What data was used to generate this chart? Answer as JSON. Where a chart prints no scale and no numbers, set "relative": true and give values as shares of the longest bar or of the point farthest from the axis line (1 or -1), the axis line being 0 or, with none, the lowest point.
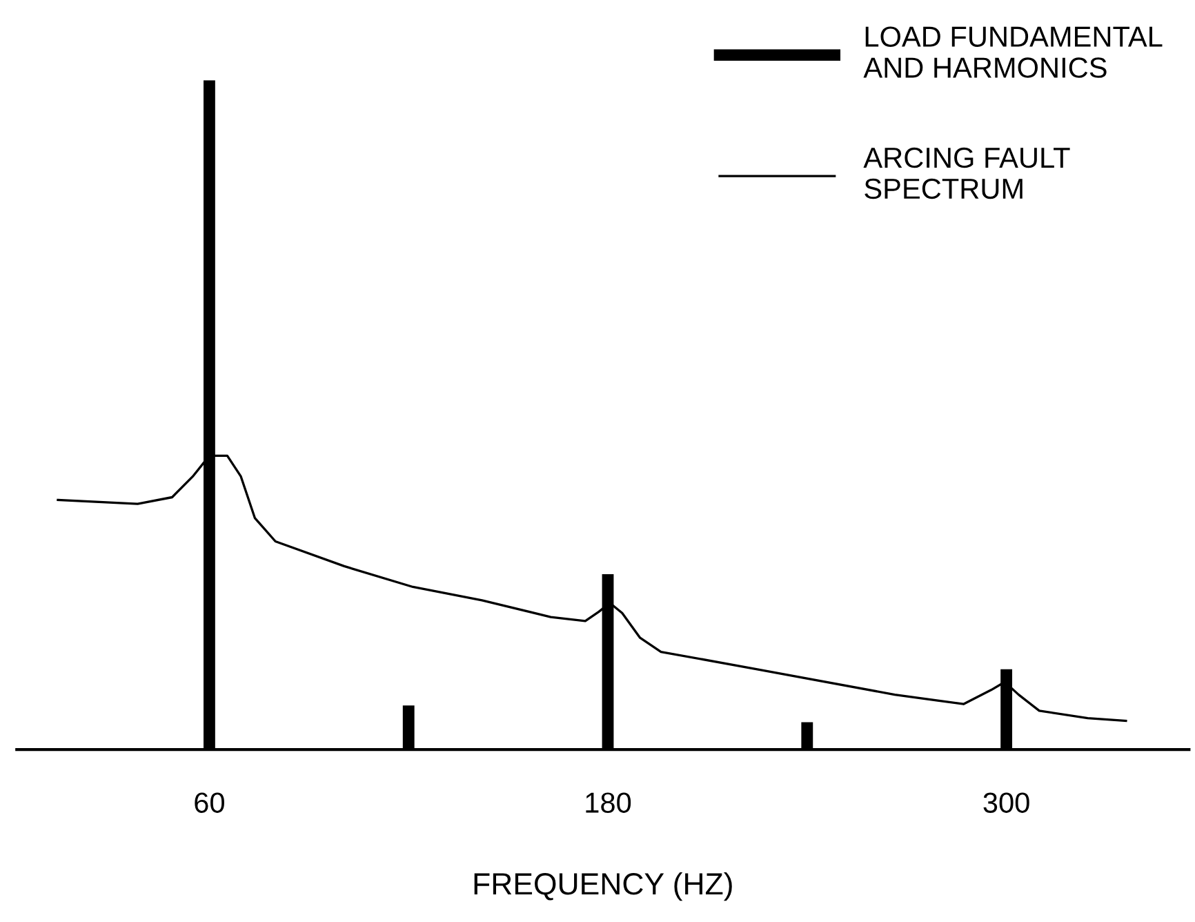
{
  "chart_data": {
    "type": "bar",
    "relative": true,
    "xlabel": "FREQUENCY (HZ)",
    "xlim": [
      2,
      355
    ],
    "xticks": [
      60,
      180,
      300
    ],
    "legend": "top right",
    "tick_labels": "x",
    "series": [
      {
        "name": "LOAD FUNDAMENTAL\nAND HARMONICS",
        "color": "#000000",
        "x": [
          60,
          120,
          180,
          240,
          300
        ],
        "values": [
          1,
          0.066,
          0.262,
          0.041,
          0.12
        ]
      },
      {
        "type": "line",
        "name": "ARCING FAULT\nSPECTRUM",
        "color": "#000000",
        "x": [
          14.4,
          38.4,
          48.8,
          55,
          60,
          65.4,
          69.5,
          73.7,
          79.9,
          100.6,
          121.3,
          142.1,
          162.8,
          173.2,
          177.3,
          180.6,
          184.3,
          189.7,
          196,
          225,
          266.4,
          287.1,
          295.4,
          299.5,
          303.7,
          309.9,
          324.5,
          336
        ],
        "values": [
          0.373,
          0.367,
          0.377,
          0.408,
          0.439,
          0.439,
          0.408,
          0.346,
          0.311,
          0.274,
          0.243,
          0.223,
          0.198,
          0.192,
          0.206,
          0.219,
          0.204,
          0.167,
          0.146,
          0.12,
          0.082,
          0.068,
          0.089,
          0.101,
          0.082,
          0.058,
          0.047,
          0.043
        ]
      }
    ]
  }
}
